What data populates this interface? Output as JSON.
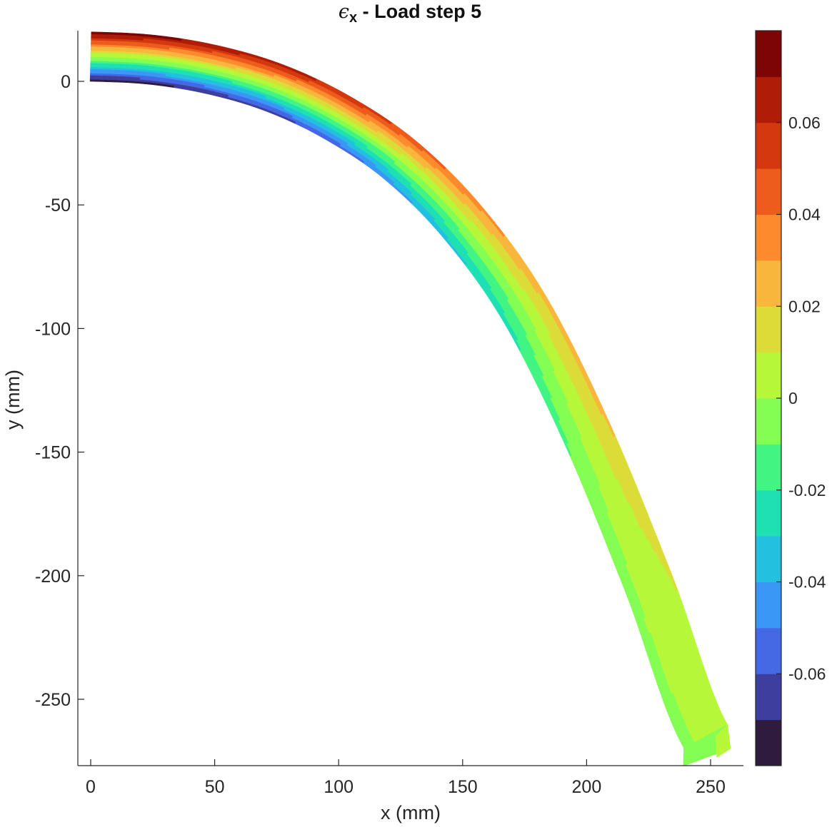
{
  "chart_data": {
    "type": "heatmap",
    "title": {
      "symbol": "ϵ",
      "subscript": "x",
      "text": "-  Load step 5"
    },
    "xlabel": "x (mm)",
    "ylabel": "y (mm)",
    "xlim": [
      -5,
      263
    ],
    "ylim": [
      -277,
      20
    ],
    "xticks": [
      0,
      50,
      100,
      150,
      200,
      250
    ],
    "yticks": [
      0,
      -50,
      -100,
      -150,
      -200,
      -250
    ],
    "grid": false,
    "colorbar": {
      "range": [
        -0.08,
        0.08
      ],
      "levels": 16,
      "ticks": [
        0.06,
        0.04,
        0.02,
        0,
        -0.02,
        -0.04,
        -0.06
      ],
      "tick_labels": [
        "0.06",
        "0.04",
        "0.02",
        "0",
        "-0.02",
        "-0.04",
        "-0.06"
      ],
      "colors": [
        "#2f1b3d",
        "#3e3e9e",
        "#4568e5",
        "#3a97f5",
        "#23c0e0",
        "#1ee0b3",
        "#42f583",
        "#84fe52",
        "#b7f73a",
        "#dcdc38",
        "#f8b73c",
        "#fd8b2e",
        "#ed5c1c",
        "#d4380e",
        "#af1c07",
        "#7e0505"
      ]
    },
    "beam": {
      "description_of_geometry": "curved cantilever beam, root at x=0, thickness ~20 mm, tip near x=240-258, y=-270..-277",
      "centerline": [
        [
          0,
          10
        ],
        [
          25,
          8.7
        ],
        [
          50,
          4.5
        ],
        [
          75,
          -3
        ],
        [
          100,
          -15
        ],
        [
          125,
          -32
        ],
        [
          150,
          -57
        ],
        [
          175,
          -92
        ],
        [
          200,
          -142
        ],
        [
          225,
          -203
        ],
        [
          250,
          -268
        ]
      ],
      "thickness": 20,
      "tip_edge": {
        "bottom": [
          239,
          -277
        ],
        "top": [
          258,
          -270
        ]
      },
      "strain_profile": [
        {
          "x": 0,
          "bottom": -0.08,
          "top": 0.08
        },
        {
          "x": 50,
          "bottom": -0.07,
          "top": 0.07
        },
        {
          "x": 100,
          "bottom": -0.06,
          "top": 0.06
        },
        {
          "x": 150,
          "bottom": -0.035,
          "top": 0.035
        },
        {
          "x": 175,
          "bottom": -0.025,
          "top": 0.025
        },
        {
          "x": 200,
          "bottom": -0.012,
          "top": 0.022
        },
        {
          "x": 215,
          "bottom": -0.005,
          "top": 0.015
        },
        {
          "x": 230,
          "bottom": -0.002,
          "top": 0.009
        },
        {
          "x": 250,
          "bottom": -0.003,
          "top": 0.008
        }
      ]
    }
  }
}
